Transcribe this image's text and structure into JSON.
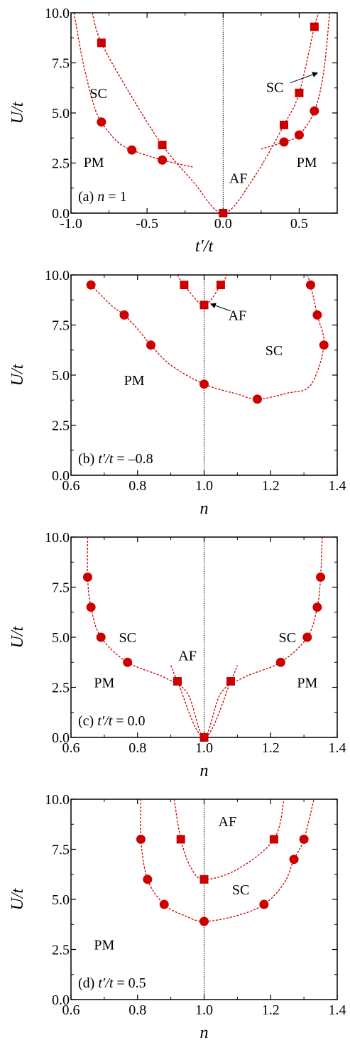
{
  "colors": {
    "marker": "#cc0000",
    "curve": "#cc0000",
    "axis": "#000000"
  },
  "chart_data": [
    {
      "type": "scatter",
      "panel_label": "(a) n = 1",
      "panel_label_parts": [
        "(a) ",
        "n",
        " = 1"
      ],
      "xlabel": "t′/t",
      "ylabel": "U/t",
      "xlim": [
        -1.0,
        0.75
      ],
      "ylim": [
        0,
        10
      ],
      "xticks": [
        -1.0,
        -0.5,
        0.0,
        0.5
      ],
      "xticklabels": [
        "-1.0",
        "-0.5",
        "0.0",
        "0.5"
      ],
      "yticks": [
        0,
        2.5,
        5,
        7.5,
        10
      ],
      "yticklabels": [
        "0.0",
        "2.5",
        "5.0",
        "7.5",
        "10.0"
      ],
      "vline": 0.0,
      "squares": [
        [
          -0.8,
          8.5
        ],
        [
          -0.4,
          3.4
        ],
        [
          0.0,
          0.0
        ],
        [
          0.4,
          4.4
        ],
        [
          0.5,
          6.0
        ],
        [
          0.6,
          9.3
        ]
      ],
      "circles": [
        [
          -0.8,
          4.55
        ],
        [
          -0.6,
          3.15
        ],
        [
          -0.4,
          2.65
        ],
        [
          0.4,
          3.55
        ],
        [
          0.5,
          3.9
        ],
        [
          0.6,
          5.1
        ]
      ],
      "curves": [
        [
          [
            -0.98,
            10.0
          ],
          [
            -0.92,
            7.5
          ],
          [
            -0.85,
            5.4
          ],
          [
            -0.8,
            4.55
          ],
          [
            -0.7,
            3.6
          ],
          [
            -0.6,
            3.15
          ],
          [
            -0.4,
            2.65
          ],
          [
            -0.2,
            2.3
          ]
        ],
        [
          [
            -0.86,
            10.0
          ],
          [
            -0.8,
            8.5
          ],
          [
            -0.6,
            5.8
          ],
          [
            -0.4,
            3.4
          ],
          [
            -0.2,
            1.6
          ],
          [
            0.0,
            0.0
          ],
          [
            0.2,
            1.75
          ],
          [
            0.4,
            4.4
          ],
          [
            0.5,
            6.0
          ],
          [
            0.6,
            9.3
          ],
          [
            0.63,
            10.0
          ]
        ],
        [
          [
            0.25,
            3.2
          ],
          [
            0.4,
            3.55
          ],
          [
            0.5,
            3.9
          ],
          [
            0.6,
            5.1
          ],
          [
            0.66,
            7.0
          ],
          [
            0.7,
            10.0
          ]
        ]
      ],
      "labels": [
        {
          "text": "SC",
          "x": -0.82,
          "y": 6.0
        },
        {
          "text": "PM",
          "x": -0.85,
          "y": 2.55
        },
        {
          "text": "AF",
          "x": 0.1,
          "y": 1.75
        },
        {
          "text": "SC",
          "x": 0.34,
          "y": 6.3
        },
        {
          "text": "PM",
          "x": 0.55,
          "y": 2.55
        }
      ],
      "arrows": [
        {
          "from": [
            0.44,
            6.5
          ],
          "to": [
            0.62,
            7.0
          ]
        }
      ]
    },
    {
      "type": "scatter",
      "panel_label": "(b) t′/t = –0.8",
      "panel_label_parts": [
        "(b) ",
        "t′/t",
        " = –0.8"
      ],
      "xlabel": "n",
      "ylabel": "U/t",
      "xlim": [
        0.6,
        1.4
      ],
      "ylim": [
        0,
        10
      ],
      "xticks": [
        0.6,
        0.8,
        1.0,
        1.2,
        1.4
      ],
      "xticklabels": [
        "0.6",
        "0.8",
        "1.0",
        "1.2",
        "1.4"
      ],
      "yticks": [
        0,
        2.5,
        5,
        7.5,
        10
      ],
      "yticklabels": [
        "0.0",
        "2.5",
        "5.0",
        "7.5",
        "10.0"
      ],
      "vline": 1.0,
      "squares": [
        [
          0.94,
          9.5
        ],
        [
          1.0,
          8.5
        ],
        [
          1.05,
          9.5
        ]
      ],
      "circles": [
        [
          0.66,
          9.5
        ],
        [
          0.76,
          8.0
        ],
        [
          0.84,
          6.5
        ],
        [
          1.0,
          4.55
        ],
        [
          1.16,
          3.8
        ],
        [
          1.32,
          9.5
        ],
        [
          1.34,
          8.0
        ],
        [
          1.36,
          6.5
        ]
      ],
      "curves": [
        [
          [
            0.66,
            9.5
          ],
          [
            0.72,
            8.5
          ],
          [
            0.76,
            8.0
          ],
          [
            0.8,
            7.3
          ],
          [
            0.84,
            6.5
          ],
          [
            0.9,
            5.5
          ],
          [
            1.0,
            4.55
          ],
          [
            1.1,
            4.05
          ],
          [
            1.16,
            3.8
          ],
          [
            1.25,
            4.1
          ],
          [
            1.32,
            4.5
          ],
          [
            1.36,
            6.5
          ],
          [
            1.34,
            8.0
          ],
          [
            1.32,
            9.5
          ],
          [
            1.31,
            10.0
          ]
        ],
        [
          [
            0.92,
            10.0
          ],
          [
            0.94,
            9.5
          ],
          [
            1.0,
            8.5
          ],
          [
            1.05,
            9.5
          ],
          [
            1.07,
            10.0
          ]
        ]
      ],
      "labels": [
        {
          "text": "PM",
          "x": 0.79,
          "y": 4.75
        },
        {
          "text": "SC",
          "x": 1.21,
          "y": 6.25
        },
        {
          "text": "AF",
          "x": 1.1,
          "y": 8.0
        }
      ],
      "arrows": [
        {
          "from": [
            1.08,
            8.2
          ],
          "to": [
            1.02,
            8.55
          ]
        }
      ]
    },
    {
      "type": "scatter",
      "panel_label": "(c) t′/t = 0.0",
      "panel_label_parts": [
        "(c) ",
        "t′/t",
        " = 0.0"
      ],
      "xlabel": "n",
      "ylabel": "U/t",
      "xlim": [
        0.6,
        1.4
      ],
      "ylim": [
        0,
        10
      ],
      "xticks": [
        0.6,
        0.8,
        1.0,
        1.2,
        1.4
      ],
      "xticklabels": [
        "0.6",
        "0.8",
        "1.0",
        "1.2",
        "1.4"
      ],
      "yticks": [
        0,
        2.5,
        5,
        7.5,
        10
      ],
      "yticklabels": [
        "0.0",
        "2.5",
        "5.0",
        "7.5",
        "10.0"
      ],
      "vline": 1.0,
      "squares": [
        [
          0.92,
          2.8
        ],
        [
          1.0,
          0.0
        ],
        [
          1.08,
          2.8
        ]
      ],
      "circles": [
        [
          0.65,
          8.0
        ],
        [
          0.66,
          6.5
        ],
        [
          0.69,
          5.0
        ],
        [
          0.77,
          3.75
        ],
        [
          1.23,
          3.75
        ],
        [
          1.31,
          5.0
        ],
        [
          1.34,
          6.5
        ],
        [
          1.35,
          8.0
        ]
      ],
      "curves": [
        [
          [
            0.65,
            10.0
          ],
          [
            0.65,
            8.0
          ],
          [
            0.66,
            6.5
          ],
          [
            0.69,
            5.0
          ],
          [
            0.77,
            3.75
          ],
          [
            0.88,
            3.0
          ],
          [
            0.95,
            2.2
          ],
          [
            1.0,
            0.0
          ],
          [
            1.05,
            2.2
          ],
          [
            1.12,
            3.0
          ],
          [
            1.23,
            3.75
          ],
          [
            1.31,
            5.0
          ],
          [
            1.34,
            6.5
          ],
          [
            1.35,
            8.0
          ],
          [
            1.355,
            10.0
          ]
        ],
        [
          [
            0.9,
            3.6
          ],
          [
            0.92,
            2.8
          ],
          [
            1.0,
            0.0
          ],
          [
            1.08,
            2.8
          ],
          [
            1.1,
            3.6
          ]
        ]
      ],
      "labels": [
        {
          "text": "SC",
          "x": 0.77,
          "y": 5.0
        },
        {
          "text": "PM",
          "x": 0.7,
          "y": 2.75
        },
        {
          "text": "AF",
          "x": 0.95,
          "y": 4.1
        },
        {
          "text": "SC",
          "x": 1.25,
          "y": 5.0
        },
        {
          "text": "PM",
          "x": 1.31,
          "y": 2.75
        }
      ],
      "arrows": []
    },
    {
      "type": "scatter",
      "panel_label": "(d) t′/t = 0.5",
      "panel_label_parts": [
        "(d) ",
        "t′/t",
        " = 0.5"
      ],
      "xlabel": "n",
      "ylabel": "U/t",
      "xlim": [
        0.6,
        1.4
      ],
      "ylim": [
        0,
        10
      ],
      "xticks": [
        0.6,
        0.8,
        1.0,
        1.2,
        1.4
      ],
      "xticklabels": [
        "0.6",
        "0.8",
        "1.0",
        "1.2",
        "1.4"
      ],
      "yticks": [
        0,
        2.5,
        5,
        7.5,
        10
      ],
      "yticklabels": [
        "0.0",
        "2.5",
        "5.0",
        "7.5",
        "10.0"
      ],
      "vline": 1.0,
      "squares": [
        [
          0.93,
          8.0
        ],
        [
          1.0,
          6.0
        ],
        [
          1.21,
          8.0
        ]
      ],
      "circles": [
        [
          0.81,
          8.0
        ],
        [
          0.83,
          6.0
        ],
        [
          0.88,
          4.75
        ],
        [
          1.0,
          3.9
        ],
        [
          1.18,
          4.75
        ],
        [
          1.27,
          7.0
        ],
        [
          1.3,
          8.0
        ]
      ],
      "curves": [
        [
          [
            0.81,
            10.0
          ],
          [
            0.81,
            8.0
          ],
          [
            0.83,
            6.0
          ],
          [
            0.88,
            4.75
          ],
          [
            0.94,
            4.2
          ],
          [
            1.0,
            3.9
          ],
          [
            1.1,
            4.2
          ],
          [
            1.18,
            4.75
          ],
          [
            1.24,
            5.8
          ],
          [
            1.27,
            7.0
          ],
          [
            1.3,
            8.0
          ],
          [
            1.33,
            10.0
          ]
        ],
        [
          [
            0.91,
            10.0
          ],
          [
            0.93,
            8.0
          ],
          [
            0.96,
            6.6
          ],
          [
            1.0,
            6.0
          ],
          [
            1.1,
            6.5
          ],
          [
            1.21,
            8.0
          ],
          [
            1.24,
            10.0
          ]
        ]
      ],
      "labels": [
        {
          "text": "AF",
          "x": 1.07,
          "y": 8.9
        },
        {
          "text": "SC",
          "x": 1.11,
          "y": 5.5
        },
        {
          "text": "PM",
          "x": 0.7,
          "y": 2.75
        }
      ],
      "arrows": []
    }
  ]
}
